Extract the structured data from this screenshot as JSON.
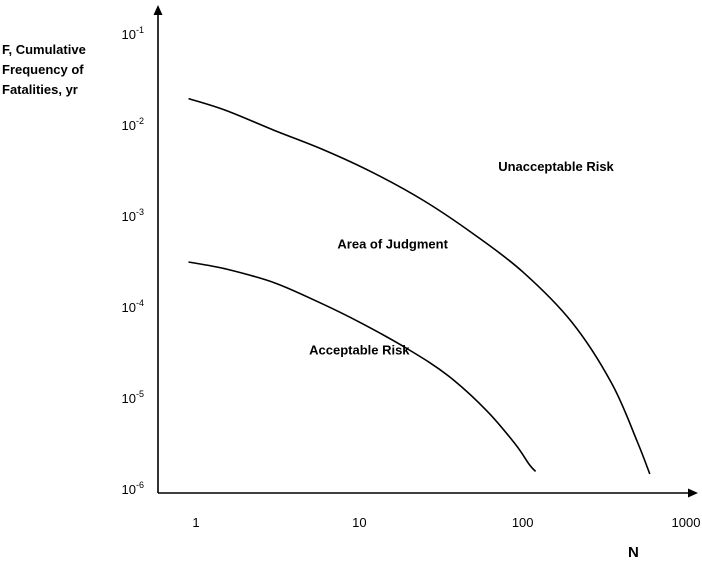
{
  "chart_data": {
    "type": "line",
    "title": "",
    "ylabel_lines": [
      "F, Cumulative",
      "Frequency of",
      "Fatalities, yr"
    ],
    "xlabel": "N",
    "xscale": "log",
    "yscale": "log",
    "xlim": [
      0.7,
      1200
    ],
    "ylim": [
      1e-06,
      0.1
    ],
    "x_ticks": [
      {
        "value": 1,
        "label": "1"
      },
      {
        "value": 10,
        "label": "10"
      },
      {
        "value": 100,
        "label": "100"
      },
      {
        "value": 1000,
        "label": "1000"
      }
    ],
    "y_ticks": [
      {
        "value": 1e-06,
        "base": "10",
        "exp": "-6"
      },
      {
        "value": 1e-05,
        "base": "10",
        "exp": "-5"
      },
      {
        "value": 0.0001,
        "base": "10",
        "exp": "-4"
      },
      {
        "value": 0.001,
        "base": "10",
        "exp": "-3"
      },
      {
        "value": 0.01,
        "base": "10",
        "exp": "-2"
      },
      {
        "value": 0.1,
        "base": "10",
        "exp": "-1"
      }
    ],
    "grid": false,
    "legend": "none",
    "series": [
      {
        "x": [
          0.9,
          1.5,
          3,
          6,
          12,
          25,
          50,
          100,
          200,
          350,
          500,
          600
        ],
        "y": [
          0.02,
          0.015,
          0.009,
          0.0055,
          0.0031,
          0.0015,
          0.00065,
          0.00025,
          7e-05,
          1.5e-05,
          3.5e-06,
          1.5e-06
        ]
      },
      {
        "x": [
          0.9,
          1.5,
          3,
          6,
          10,
          20,
          35,
          60,
          90,
          110,
          120
        ],
        "y": [
          0.00032,
          0.00027,
          0.00019,
          0.00011,
          7e-05,
          3.5e-05,
          1.8e-05,
          7.5e-06,
          3.2e-06,
          1.9e-06,
          1.6e-06
        ]
      }
    ],
    "annotations": [
      {
        "text": "Unacceptable Risk",
        "x": 160,
        "y": 0.0032
      },
      {
        "text": "Area of Judgment",
        "x": 16,
        "y": 0.00045
      },
      {
        "text": "Acceptable Risk",
        "x": 10,
        "y": 3.1e-05
      }
    ]
  }
}
